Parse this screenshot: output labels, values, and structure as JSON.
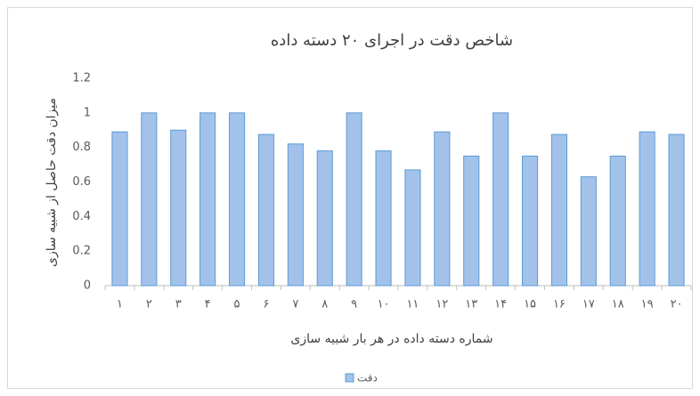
{
  "chart_data": {
    "type": "bar",
    "title": "شاخص دقت در اجرای ۲۰ دسته داده",
    "y_label": "میزان دقت حاصل از شبیه سازی",
    "x_label": "شماره دسته داده در هر بار شبیه سازی",
    "categories": [
      "۱",
      "۲",
      "۳",
      "۴",
      "۵",
      "۶",
      "۷",
      "۸",
      "۹",
      "۱۰",
      "۱۱",
      "۱۲",
      "۱۳",
      "۱۴",
      "۱۵",
      "۱۶",
      "۱۷",
      "۱۸",
      "۱۹",
      "۲۰"
    ],
    "series": [
      {
        "name": "دقت",
        "color": "#a3c2ea",
        "values": [
          0.89,
          1,
          0.9,
          1,
          1,
          0.875,
          0.82,
          0.78,
          1,
          0.78,
          0.67,
          0.89,
          0.75,
          1,
          0.75,
          0.875,
          0.63,
          0.75,
          0.89,
          0.875
        ]
      }
    ],
    "ylim": [
      0,
      1.2
    ],
    "yticks": [
      0,
      0.2,
      0.4,
      0.6,
      0.8,
      1,
      1.2
    ],
    "grid": false,
    "legend": "bottom"
  }
}
